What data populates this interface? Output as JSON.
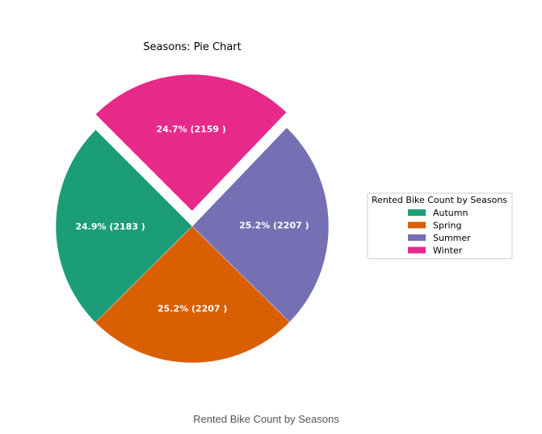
{
  "caption": "Rented Bike Count by Seasons",
  "chart_data": {
    "type": "pie",
    "title": "Seasons: Pie Chart",
    "legend_title": "Rented Bike Count by Seasons",
    "legend_position": "right",
    "start_angle_deg": 135,
    "direction": "counterclockwise",
    "slices": [
      {
        "name": "Autumn",
        "value": 2183,
        "percent": 24.9,
        "label": "24.9% (2183 )",
        "color": "#1b9e77",
        "exploded": false
      },
      {
        "name": "Spring",
        "value": 2207,
        "percent": 25.2,
        "label": "25.2% (2207 )",
        "color": "#d95f02",
        "exploded": false
      },
      {
        "name": "Summer",
        "value": 2207,
        "percent": 25.2,
        "label": "25.2% (2207 )",
        "color": "#7570b3",
        "exploded": false
      },
      {
        "name": "Winter",
        "value": 2159,
        "percent": 24.7,
        "label": "24.7% (2159 )",
        "color": "#e7298a",
        "exploded": true
      }
    ]
  }
}
